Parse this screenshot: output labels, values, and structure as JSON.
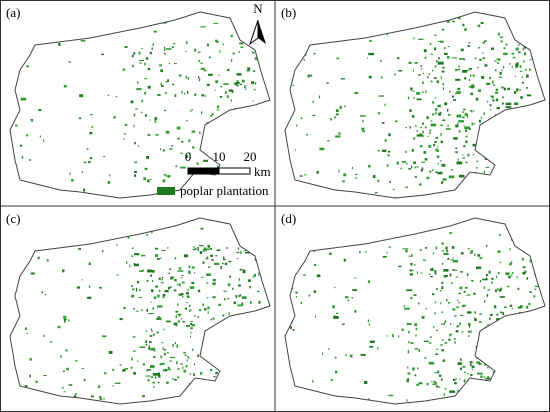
{
  "panels": [
    {
      "label": "(a)"
    },
    {
      "label": "(b)"
    },
    {
      "label": "(c)"
    },
    {
      "label": "(d)"
    }
  ],
  "north_arrow": {
    "label": "N"
  },
  "scale_bar": {
    "ticks": [
      "0",
      "10",
      "20"
    ],
    "unit": "km"
  },
  "legend": {
    "label": "poplar plantation"
  }
}
